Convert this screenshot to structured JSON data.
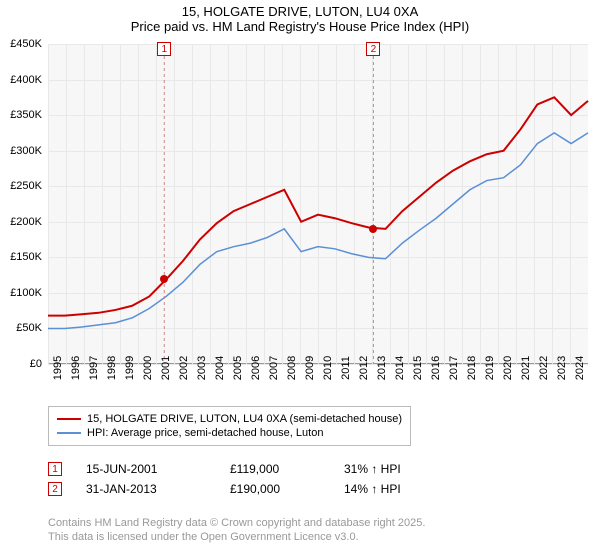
{
  "title": {
    "line1": "15, HOLGATE DRIVE, LUTON, LU4 0XA",
    "line2": "Price paid vs. HM Land Registry's House Price Index (HPI)"
  },
  "chart": {
    "type": "line",
    "background_color": "#f7f7f7",
    "grid_color": "#e8e8e8",
    "x_years": [
      1995,
      1996,
      1997,
      1998,
      1999,
      2000,
      2001,
      2002,
      2003,
      2004,
      2005,
      2006,
      2007,
      2008,
      2009,
      2010,
      2011,
      2012,
      2013,
      2014,
      2015,
      2016,
      2017,
      2018,
      2019,
      2020,
      2021,
      2022,
      2023,
      2024
    ],
    "ylim": [
      0,
      450000
    ],
    "yticks": [
      0,
      50000,
      100000,
      150000,
      200000,
      250000,
      300000,
      350000,
      400000,
      450000
    ],
    "ytick_labels": [
      "£0",
      "£50K",
      "£100K",
      "£150K",
      "£200K",
      "£250K",
      "£300K",
      "£350K",
      "£400K",
      "£450K"
    ],
    "series": {
      "property": {
        "label": "15, HOLGATE DRIVE, LUTON, LU4 0XA (semi-detached house)",
        "color": "#cc0000",
        "width": 2,
        "values": [
          68,
          68,
          70,
          72,
          76,
          82,
          95,
          119,
          145,
          175,
          198,
          215,
          225,
          235,
          245,
          200,
          210,
          205,
          198,
          192,
          190,
          215,
          235,
          255,
          272,
          285,
          295,
          300,
          330,
          365,
          375,
          350,
          370
        ]
      },
      "hpi": {
        "label": "HPI: Average price, semi-detached house, Luton",
        "color": "#5b8fd6",
        "width": 1.5,
        "values": [
          50,
          50,
          52,
          55,
          58,
          65,
          78,
          95,
          115,
          140,
          158,
          165,
          170,
          178,
          190,
          158,
          165,
          162,
          155,
          150,
          148,
          170,
          188,
          205,
          225,
          245,
          258,
          262,
          280,
          310,
          325,
          310,
          325
        ]
      }
    },
    "sale_markers": [
      {
        "idx": "1",
        "year": 2001.46,
        "price": 119000,
        "color": "#cc0000"
      },
      {
        "idx": "2",
        "year": 2013.08,
        "price": 190000,
        "color": "#cc0000"
      }
    ]
  },
  "legend": {
    "items": [
      {
        "color": "#cc0000",
        "width": 2,
        "key": "chart.series.property.label"
      },
      {
        "color": "#5b8fd6",
        "width": 1.5,
        "key": "chart.series.hpi.label"
      }
    ]
  },
  "sales": [
    {
      "idx": "1",
      "date": "15-JUN-2001",
      "price": "£119,000",
      "pct": "31% ↑ HPI",
      "color": "#cc0000"
    },
    {
      "idx": "2",
      "date": "31-JAN-2013",
      "price": "£190,000",
      "pct": "14% ↑ HPI",
      "color": "#cc0000"
    }
  ],
  "footer": {
    "line1": "Contains HM Land Registry data © Crown copyright and database right 2025.",
    "line2": "This data is licensed under the Open Government Licence v3.0."
  }
}
